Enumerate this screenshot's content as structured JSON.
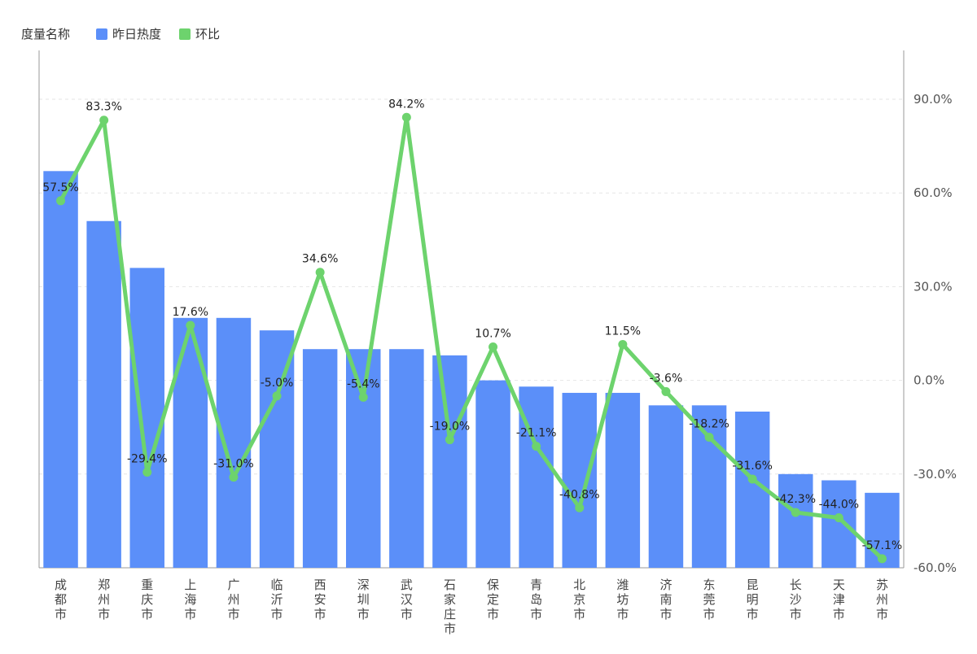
{
  "legend": {
    "title": "度量名称",
    "items": [
      {
        "label": "昨日热度",
        "color": "#5b8ff9"
      },
      {
        "label": "环比",
        "color": "#6dd36d"
      }
    ]
  },
  "chart_data": {
    "type": "bar",
    "categories": [
      "成都市",
      "郑州市",
      "重庆市",
      "上海市",
      "广州市",
      "临沂市",
      "西安市",
      "深圳市",
      "武汉市",
      "石家庄市",
      "保定市",
      "青岛市",
      "北京市",
      "潍坊市",
      "济南市",
      "东莞市",
      "昆明市",
      "长沙市",
      "天津市",
      "苏州市"
    ],
    "series": [
      {
        "name": "昨日热度",
        "kind": "bar",
        "axis": "left",
        "color": "#5b8ff9",
        "values": [
          127,
          111,
          96,
          80,
          80,
          76,
          70,
          70,
          70,
          68,
          60,
          58,
          56,
          56,
          52,
          52,
          50,
          30,
          28,
          24
        ]
      },
      {
        "name": "环比",
        "kind": "line",
        "axis": "right",
        "color": "#6dd36d",
        "values": [
          57.5,
          83.3,
          -29.4,
          17.6,
          -31.0,
          -5.0,
          34.6,
          -5.4,
          84.2,
          -19.0,
          10.7,
          -21.1,
          -40.8,
          11.5,
          -3.6,
          -18.2,
          -31.6,
          -42.3,
          -44.0,
          -57.1
        ],
        "labels": [
          "57.5%",
          "83.3%",
          "-29.4%",
          "17.6%",
          "-31.0%",
          "-5.0%",
          "34.6%",
          "-5.4%",
          "84.2%",
          "-19.0%",
          "10.7%",
          "-21.1%",
          "-40.8%",
          "11.5%",
          "-3.6%",
          "-18.2%",
          "-31.6%",
          "-42.3%",
          "-44.0%",
          "-57.1%"
        ]
      }
    ],
    "y2_ticks": [
      "90.0%",
      "60.0%",
      "30.0%",
      "0.0%",
      "-30.0%",
      "-60.0%"
    ],
    "y2_values": [
      90,
      60,
      30,
      0,
      -30,
      -60
    ],
    "y2lim": [
      -60,
      90
    ],
    "ylim": [
      0,
      150
    ],
    "grid": true,
    "legend_position": "top-left"
  }
}
